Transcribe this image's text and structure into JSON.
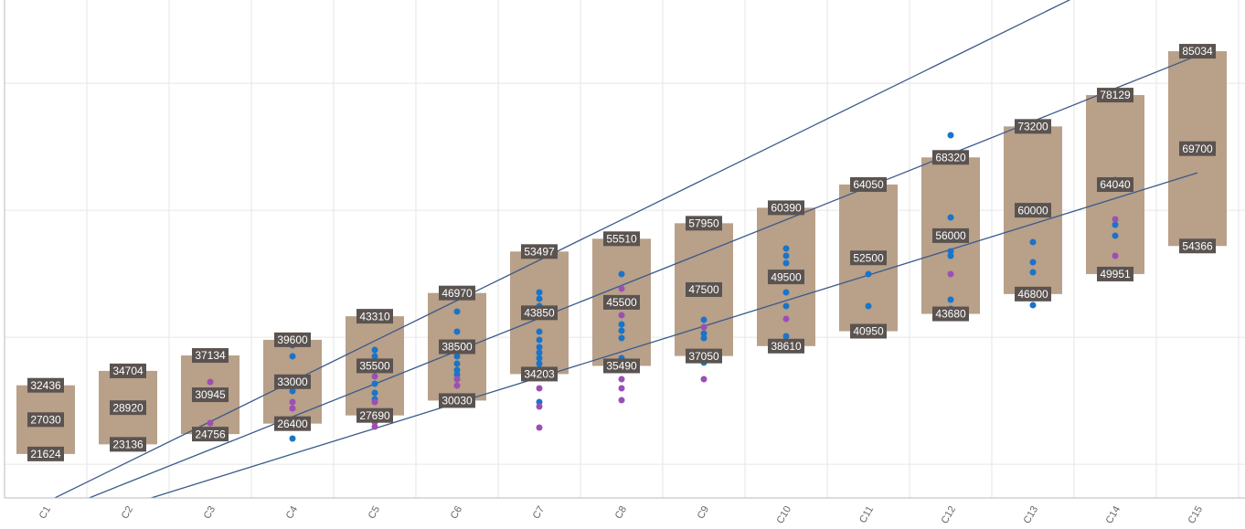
{
  "chart_data": {
    "type": "range_bar",
    "categories": [
      "C1",
      "C2",
      "C3",
      "C4",
      "C5",
      "C6",
      "C7",
      "C8",
      "C9",
      "C10",
      "C11",
      "C12",
      "C13",
      "C14",
      "C15"
    ],
    "ylim": [
      14700,
      93100
    ],
    "yticks": [
      20000,
      40000,
      60000,
      80000
    ],
    "grid": true,
    "bar_color": "#b8a089",
    "label_color": "#5a5350",
    "ranges": {
      "min": [
        21624,
        23136,
        24756,
        26400,
        27690,
        30030,
        34203,
        35490,
        37050,
        38610,
        40950,
        43680,
        46800,
        49951,
        54366
      ],
      "mid": [
        27030,
        28920,
        30945,
        33000,
        35500,
        38500,
        43850,
        45500,
        47500,
        49500,
        52500,
        56000,
        60000,
        64040,
        69700
      ],
      "max": [
        32436,
        34704,
        37134,
        39600,
        43310,
        46970,
        53497,
        55510,
        57950,
        60390,
        64050,
        68320,
        73200,
        78129,
        85034
      ]
    },
    "points": [
      {
        "color": "#1a74c9",
        "categories": [
          "C4",
          "C4",
          "C4",
          "C4",
          "C5",
          "C5",
          "C5",
          "C5",
          "C5",
          "C5",
          "C5",
          "C6",
          "C6",
          "C6",
          "C6",
          "C6",
          "C6",
          "C6",
          "C7",
          "C7",
          "C7",
          "C7",
          "C7",
          "C7",
          "C7",
          "C7",
          "C7",
          "C7",
          "C7",
          "C8",
          "C8",
          "C8",
          "C8",
          "C8",
          "C8",
          "C9",
          "C9",
          "C9",
          "C9",
          "C10",
          "C10",
          "C10",
          "C10",
          "C10",
          "C10",
          "C11",
          "C11",
          "C12",
          "C12",
          "C12",
          "C12",
          "C12",
          "C12",
          "C13",
          "C13",
          "C13",
          "C13",
          "C14",
          "C14",
          "C14"
        ],
        "values": [
          38720,
          37000,
          31530,
          24050,
          38000,
          37000,
          36000,
          34840,
          32680,
          31240,
          30240,
          44050,
          40880,
          38440,
          37000,
          35850,
          34840,
          34120,
          47070,
          46060,
          44910,
          40880,
          39590,
          38440,
          37570,
          36710,
          35850,
          34980,
          29800,
          49940,
          45920,
          42030,
          41020,
          39870,
          36710,
          42750,
          40590,
          39870,
          36000,
          53970,
          52820,
          51670,
          47070,
          44910,
          40160,
          49940,
          44910,
          71810,
          58860,
          53540,
          52820,
          45920,
          44480,
          54980,
          51810,
          50230,
          45050,
          64760,
          57710,
          55990
        ]
      },
      {
        "color": "#9b4fb5",
        "categories": [
          "C3",
          "C3",
          "C4",
          "C4",
          "C5",
          "C5",
          "C5",
          "C5",
          "C6",
          "C6",
          "C7",
          "C7",
          "C7",
          "C8",
          "C8",
          "C8",
          "C8",
          "C8",
          "C8",
          "C9",
          "C9",
          "C10",
          "C12",
          "C12",
          "C14",
          "C14"
        ],
        "values": [
          32970,
          26500,
          29800,
          28800,
          33830,
          29800,
          26640,
          25920,
          33400,
          32390,
          31960,
          29090,
          25780,
          47640,
          43470,
          35560,
          33400,
          31960,
          30090,
          41600,
          33400,
          42900,
          49940,
          43040,
          58570,
          52820
        ]
      }
    ],
    "trend_lines": [
      {
        "color": "#3b5a8a",
        "values": [
          14000,
          20360,
          26710,
          33070,
          39430,
          45790,
          52140,
          58500,
          64860,
          71210,
          77570,
          83930,
          90290,
          96640,
          103000
        ]
      },
      {
        "color": "#3b5a8a",
        "values": [
          11970,
          17140,
          22310,
          27480,
          32650,
          37820,
          42990,
          48160,
          53330,
          58500,
          63670,
          68840,
          74010,
          79180,
          84350
        ]
      },
      {
        "color": "#3b5a8a",
        "values": [
          9540,
          13565,
          17590,
          21615,
          25640,
          29665,
          33690,
          37715,
          41740,
          45765,
          49790,
          53815,
          57840,
          61865,
          65890
        ]
      }
    ]
  }
}
